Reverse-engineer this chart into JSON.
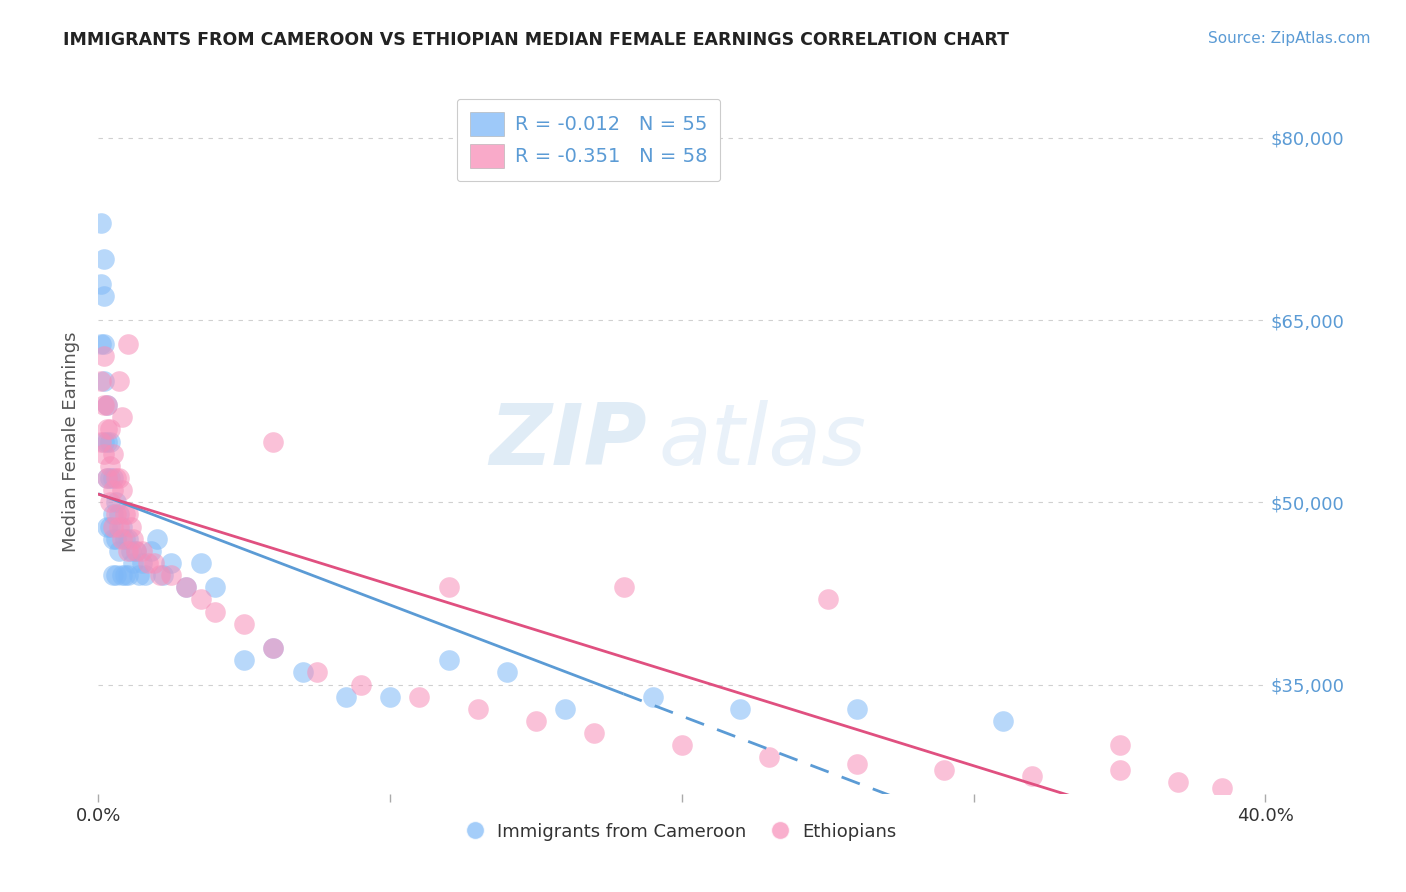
{
  "title": "IMMIGRANTS FROM CAMEROON VS ETHIOPIAN MEDIAN FEMALE EARNINGS CORRELATION CHART",
  "source": "Source: ZipAtlas.com",
  "ylabel": "Median Female Earnings",
  "xlim": [
    0.0,
    0.4
  ],
  "ylim": [
    26000,
    84000
  ],
  "yticks": [
    35000,
    50000,
    65000,
    80000
  ],
  "ytick_labels": [
    "$35,000",
    "$50,000",
    "$65,000",
    "$80,000"
  ],
  "xtick_positions": [
    0.0,
    0.1,
    0.2,
    0.3,
    0.4
  ],
  "xtick_labels": [
    "0.0%",
    "",
    "",
    "",
    "40.0%"
  ],
  "cameroon_color": "#7eb8f7",
  "ethiopian_color": "#f78eb8",
  "cameroon_R": -0.012,
  "cameroon_N": 55,
  "ethiopian_R": -0.351,
  "ethiopian_N": 58,
  "cameroon_label": "Immigrants from Cameroon",
  "ethiopian_label": "Ethiopians",
  "watermark_zip": "ZIP",
  "watermark_atlas": "atlas",
  "background_color": "#ffffff",
  "grid_color": "#d0d0d0",
  "cameroon_x": [
    0.001,
    0.001,
    0.001,
    0.002,
    0.002,
    0.002,
    0.002,
    0.002,
    0.003,
    0.003,
    0.003,
    0.003,
    0.004,
    0.004,
    0.004,
    0.005,
    0.005,
    0.005,
    0.005,
    0.006,
    0.006,
    0.006,
    0.007,
    0.007,
    0.008,
    0.008,
    0.009,
    0.009,
    0.01,
    0.01,
    0.011,
    0.012,
    0.013,
    0.014,
    0.015,
    0.016,
    0.018,
    0.02,
    0.022,
    0.025,
    0.03,
    0.035,
    0.04,
    0.05,
    0.06,
    0.07,
    0.085,
    0.1,
    0.12,
    0.14,
    0.16,
    0.19,
    0.22,
    0.26,
    0.31
  ],
  "cameroon_y": [
    73000,
    68000,
    63000,
    70000,
    67000,
    63000,
    60000,
    55000,
    58000,
    55000,
    52000,
    48000,
    55000,
    52000,
    48000,
    52000,
    49000,
    47000,
    44000,
    50000,
    47000,
    44000,
    49000,
    46000,
    48000,
    44000,
    47000,
    44000,
    47000,
    44000,
    46000,
    45000,
    46000,
    44000,
    45000,
    44000,
    46000,
    47000,
    44000,
    45000,
    43000,
    45000,
    43000,
    37000,
    38000,
    36000,
    34000,
    34000,
    37000,
    36000,
    33000,
    34000,
    33000,
    33000,
    32000
  ],
  "ethiopian_x": [
    0.001,
    0.001,
    0.002,
    0.002,
    0.002,
    0.003,
    0.003,
    0.003,
    0.004,
    0.004,
    0.004,
    0.005,
    0.005,
    0.005,
    0.006,
    0.006,
    0.007,
    0.007,
    0.008,
    0.008,
    0.009,
    0.01,
    0.01,
    0.011,
    0.012,
    0.013,
    0.015,
    0.017,
    0.019,
    0.021,
    0.025,
    0.03,
    0.035,
    0.04,
    0.05,
    0.06,
    0.075,
    0.09,
    0.11,
    0.13,
    0.15,
    0.17,
    0.2,
    0.23,
    0.26,
    0.29,
    0.32,
    0.35,
    0.37,
    0.385,
    0.06,
    0.01,
    0.008,
    0.12,
    0.007,
    0.18,
    0.25,
    0.35
  ],
  "ethiopian_y": [
    60000,
    55000,
    62000,
    58000,
    54000,
    58000,
    56000,
    52000,
    56000,
    53000,
    50000,
    54000,
    51000,
    48000,
    52000,
    49000,
    52000,
    48000,
    51000,
    47000,
    49000,
    49000,
    46000,
    48000,
    47000,
    46000,
    46000,
    45000,
    45000,
    44000,
    44000,
    43000,
    42000,
    41000,
    40000,
    38000,
    36000,
    35000,
    34000,
    33000,
    32000,
    31000,
    30000,
    29000,
    28500,
    28000,
    27500,
    28000,
    27000,
    26500,
    55000,
    63000,
    57000,
    43000,
    60000,
    43000,
    42000,
    30000
  ],
  "title_color": "#222222",
  "source_color": "#5b9bd5",
  "ylabel_color": "#555555",
  "ytick_color": "#5b9bd5",
  "legend_text_color": "#5b9bd5",
  "bottom_legend_color": "#333333"
}
